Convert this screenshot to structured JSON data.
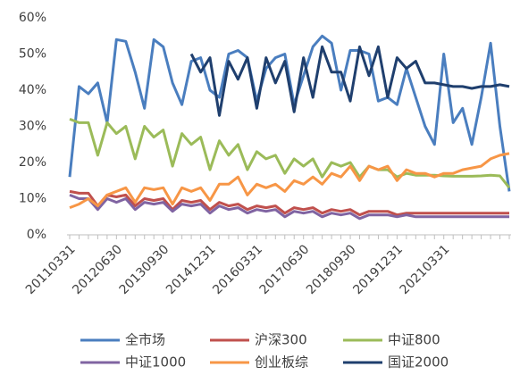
{
  "chart_data": {
    "type": "line",
    "categories": [
      "20110331",
      null,
      null,
      null,
      null,
      "20120630",
      null,
      null,
      null,
      null,
      "20130930",
      null,
      null,
      null,
      null,
      "20141231",
      null,
      null,
      null,
      null,
      "20160331",
      null,
      null,
      null,
      null,
      "20170630",
      null,
      null,
      null,
      null,
      "20180930",
      null,
      null,
      null,
      null,
      "20191231",
      null,
      null,
      null,
      null,
      "20210331",
      null,
      null,
      null,
      null,
      null,
      null,
      null
    ],
    "ylim": [
      0,
      60
    ],
    "yticks": [
      {
        "value": 0,
        "label": "0%"
      },
      {
        "value": 10,
        "label": "10%"
      },
      {
        "value": 20,
        "label": "20%"
      },
      {
        "value": 30,
        "label": "30%"
      },
      {
        "value": 40,
        "label": "40%"
      },
      {
        "value": 50,
        "label": "50%"
      },
      {
        "value": 60,
        "label": "60%"
      }
    ],
    "grid": false,
    "series": [
      {
        "name": "全市场",
        "color": "#4a7ebf",
        "values": [
          16,
          41,
          39,
          42,
          31,
          54,
          53.5,
          45,
          35,
          54,
          52,
          42,
          36,
          48,
          49,
          40,
          38,
          50,
          51,
          49,
          37,
          46,
          49,
          50,
          36,
          44,
          52,
          55,
          53,
          40,
          51,
          51,
          50,
          37,
          38,
          36,
          46,
          38,
          30,
          25,
          50,
          31,
          35,
          25,
          38,
          53,
          30,
          12
        ]
      },
      {
        "name": "沪深300",
        "color": "#c0504d",
        "values": [
          12,
          11.5,
          11.5,
          8,
          11,
          10.5,
          11,
          8,
          10,
          9.5,
          10,
          7,
          9.5,
          9,
          9.5,
          7,
          9,
          8,
          8.5,
          7,
          8,
          7.5,
          8,
          6,
          7.5,
          7,
          7.5,
          6,
          7,
          6.5,
          7,
          5.5,
          6.5,
          6.5,
          6.5,
          5.5,
          6,
          6,
          6,
          6,
          6,
          6,
          6,
          6,
          6,
          6,
          6,
          6
        ]
      },
      {
        "name": "中证800",
        "color": "#9bbb59",
        "values": [
          32,
          31,
          31,
          22,
          31,
          28,
          30,
          21,
          30,
          27,
          29,
          19,
          28,
          25,
          27,
          18,
          26,
          22,
          25,
          18,
          23,
          21,
          22,
          17,
          21,
          19,
          21,
          16,
          20,
          19,
          20,
          16,
          19,
          18,
          18,
          16,
          17,
          16.5,
          16.5,
          16.5,
          16.3,
          16.2,
          16.2,
          16.2,
          16.3,
          16.5,
          16.3,
          13
        ]
      },
      {
        "name": "中证1000",
        "color": "#8064a2",
        "values": [
          11,
          10,
          10,
          7,
          10,
          9,
          10,
          7,
          9,
          8.5,
          9,
          6.5,
          8.5,
          8,
          8.5,
          6,
          8,
          7,
          7.5,
          6,
          7,
          6.5,
          7,
          5,
          6.5,
          6,
          6.5,
          5,
          6,
          5.5,
          6,
          4.5,
          5.5,
          5.5,
          5.5,
          5,
          5.5,
          5,
          5,
          5,
          5,
          5,
          5,
          5,
          5,
          5,
          5,
          5
        ]
      },
      {
        "name": "创业板综",
        "color": "#f79646",
        "values": [
          7.5,
          8.5,
          10,
          8,
          11,
          12,
          13,
          9,
          13,
          12.5,
          13,
          8.5,
          13,
          12,
          13,
          9.5,
          14,
          14,
          16,
          11,
          14,
          13,
          14,
          12,
          15,
          14,
          16,
          14,
          17,
          16,
          19,
          15,
          19,
          18,
          19,
          15,
          18,
          17,
          17,
          16,
          17,
          17,
          18,
          18.5,
          19,
          21,
          22,
          22.5
        ]
      },
      {
        "name": "国证2000",
        "color": "#1f3f6e",
        "values": [
          null,
          null,
          null,
          null,
          null,
          null,
          null,
          null,
          null,
          null,
          null,
          null,
          null,
          50,
          45,
          49,
          33,
          48,
          43,
          49,
          35,
          49,
          42,
          48,
          34,
          49,
          38,
          52,
          45,
          45,
          37,
          52,
          44,
          52,
          38,
          49,
          46,
          48,
          42,
          42,
          41.5,
          41,
          41,
          40.5,
          41,
          41,
          41.5,
          41
        ]
      }
    ]
  }
}
